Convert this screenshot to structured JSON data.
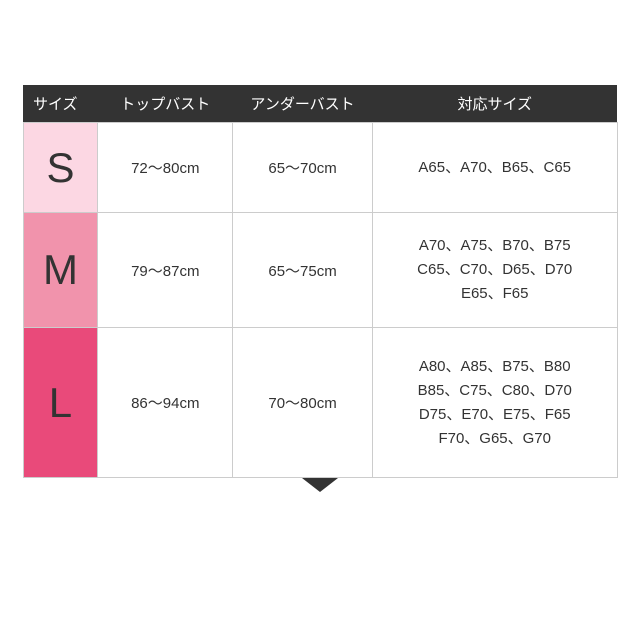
{
  "table": {
    "header_bg": "#333333",
    "header_fg": "#ffffff",
    "cell_border": "#cccccc",
    "cell_bg": "#ffffff",
    "text_color": "#333333",
    "arrow_color": "#333333",
    "columns": [
      "サイズ",
      "トップバスト",
      "アンダーバスト",
      "対応サイズ"
    ],
    "rows": [
      {
        "size": "S",
        "size_bg": "#fcd7e3",
        "top_bust": "72～80cm",
        "under_bust": "65～70cm",
        "corresponding": "A65、A70、B65、C65"
      },
      {
        "size": "M",
        "size_bg": "#f193ac",
        "top_bust": "79～87cm",
        "under_bust": "65～75cm",
        "corresponding": "A70、A75、B70、B75\nC65、C70、D65、D70\nE65、F65"
      },
      {
        "size": "L",
        "size_bg": "#e94a7a",
        "top_bust": "86～94cm",
        "under_bust": "70～80cm",
        "corresponding": "A80、A85、B75、B80\nB85、C75、C80、D70\nD75、E70、E75、F65\nF70、G65、G70"
      }
    ]
  }
}
